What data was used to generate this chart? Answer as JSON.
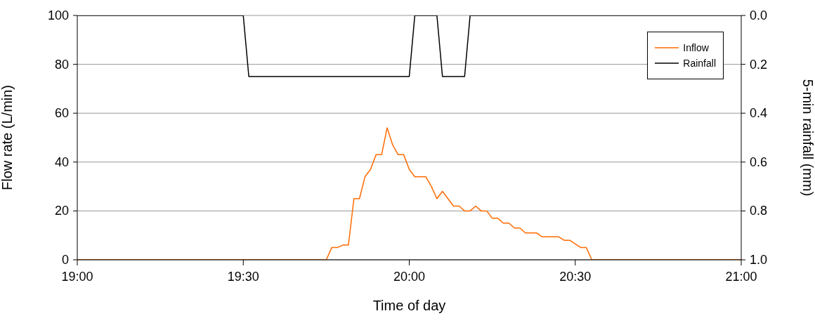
{
  "chart_data": {
    "type": "line",
    "xlabel": "Time of day",
    "ylabel": "Flow rate (L/min)",
    "y2label": "5-min rainfall (mm)",
    "xlim": [
      19,
      21
    ],
    "xticks": [
      {
        "value": 19,
        "label": "19:00"
      },
      {
        "value": 19.5,
        "label": "19:30"
      },
      {
        "value": 20,
        "label": "20:00"
      },
      {
        "value": 20.5,
        "label": "20:30"
      },
      {
        "value": 21,
        "label": "21:00"
      }
    ],
    "ylim": [
      0,
      100
    ],
    "yticks": [
      0,
      20,
      40,
      60,
      80,
      100
    ],
    "y2lim": [
      1,
      0
    ],
    "y2ticks": [
      {
        "value": 0,
        "label": "0.0"
      },
      {
        "value": 0.2,
        "label": "0.2"
      },
      {
        "value": 0.4,
        "label": "0.4"
      },
      {
        "value": 0.6,
        "label": "0.6"
      },
      {
        "value": 0.8,
        "label": "0.8"
      },
      {
        "value": 1,
        "label": "1.0"
      }
    ],
    "grid": "y",
    "legend": "top right",
    "marker": "none",
    "line_style": "solid",
    "series": [
      {
        "name": "Inflow",
        "color": "#ff6a00",
        "x": [
          19,
          19.75,
          19.7667,
          19.7833,
          19.8,
          19.8167,
          19.8333,
          19.85,
          19.8667,
          19.8833,
          19.9,
          19.9167,
          19.9333,
          19.95,
          19.9667,
          19.9833,
          20,
          20.0167,
          20.0333,
          20.05,
          20.0667,
          20.0833,
          20.1,
          20.1167,
          20.1333,
          20.15,
          20.1667,
          20.1833,
          20.2,
          20.2167,
          20.2333,
          20.25,
          20.2667,
          20.2833,
          20.3,
          20.3167,
          20.3333,
          20.35,
          20.3667,
          20.3833,
          20.4,
          20.4167,
          20.4333,
          20.45,
          20.4667,
          20.4833,
          20.5,
          20.5167,
          20.5333,
          20.55,
          21
        ],
        "values": [
          0,
          0,
          5,
          5,
          6,
          6,
          25,
          25,
          34,
          37,
          43,
          43,
          54,
          47,
          43,
          43,
          37,
          34,
          34,
          34,
          30,
          25,
          28,
          25,
          22,
          22,
          20,
          20,
          22,
          20,
          20,
          17,
          17,
          15,
          15,
          13,
          13,
          11,
          11,
          11,
          9.4,
          9.4,
          9.4,
          9.4,
          8,
          8,
          6.5,
          5,
          5,
          0,
          0
        ]
      },
      {
        "name": "Rainfall",
        "color": "#000000",
        "axis": "y2",
        "x": [
          19,
          19.5,
          19.5167,
          20,
          20.0167,
          20.0833,
          20.1,
          20.1667,
          20.1833,
          21
        ],
        "values": [
          0,
          0,
          0.25,
          0.25,
          0,
          0,
          0.25,
          0.25,
          0,
          0
        ]
      }
    ]
  }
}
